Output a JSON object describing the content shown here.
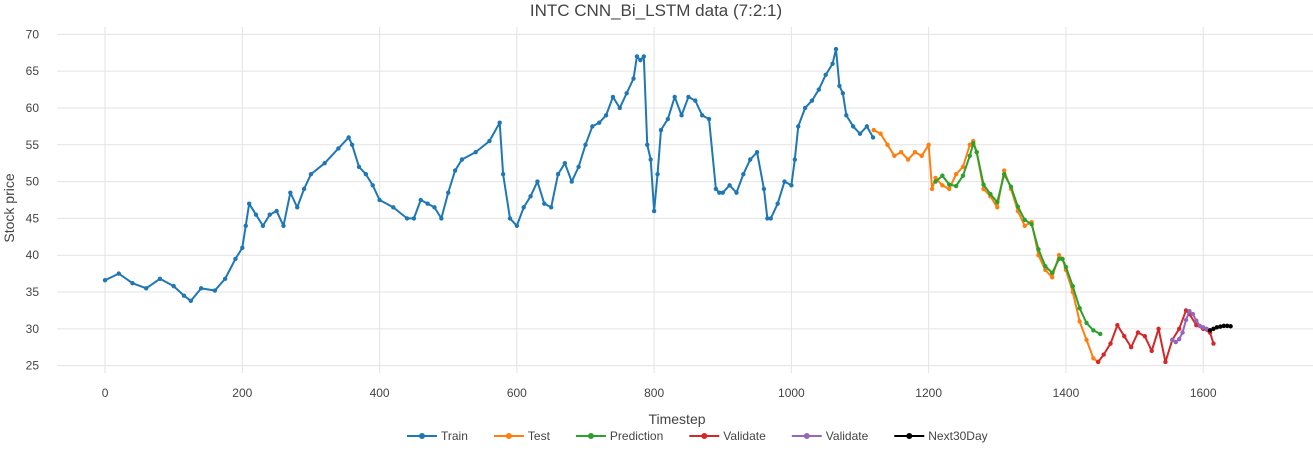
{
  "chart_data": {
    "type": "line",
    "title": "INTC CNN_Bi_LSTM data (7:2:1)",
    "xlabel": "Timestep",
    "ylabel": "Stock price",
    "xlim": [
      -70,
      1760
    ],
    "ylim": [
      24,
      71
    ],
    "xticks": [
      0,
      200,
      400,
      600,
      800,
      1000,
      1200,
      1400,
      1600
    ],
    "yticks": [
      25,
      30,
      35,
      40,
      45,
      50,
      55,
      60,
      65,
      70
    ],
    "grid": true,
    "legend_position": "bottom-center",
    "series": [
      {
        "name": "Train",
        "color": "#1f77b4",
        "x": [
          0,
          20,
          40,
          60,
          80,
          100,
          115,
          125,
          140,
          160,
          175,
          190,
          200,
          205,
          210,
          220,
          230,
          240,
          250,
          260,
          270,
          280,
          290,
          300,
          320,
          340,
          355,
          360,
          370,
          380,
          390,
          400,
          420,
          440,
          450,
          460,
          470,
          480,
          490,
          500,
          510,
          520,
          540,
          560,
          575,
          580,
          590,
          600,
          610,
          620,
          630,
          640,
          650,
          660,
          670,
          680,
          690,
          700,
          710,
          720,
          730,
          740,
          750,
          760,
          770,
          775,
          780,
          785,
          790,
          795,
          800,
          805,
          810,
          820,
          830,
          840,
          850,
          860,
          870,
          880,
          890,
          895,
          900,
          910,
          920,
          930,
          940,
          950,
          960,
          965,
          970,
          980,
          990,
          1000,
          1005,
          1010,
          1020,
          1030,
          1040,
          1050,
          1060,
          1065,
          1070,
          1075,
          1080,
          1090,
          1100,
          1110,
          1119
        ],
        "y": [
          36.6,
          37.5,
          36.2,
          35.5,
          36.8,
          35.8,
          34.5,
          33.8,
          35.5,
          35.2,
          36.8,
          39.5,
          41.0,
          44.0,
          47.0,
          45.5,
          44.0,
          45.5,
          46.0,
          44.0,
          48.5,
          46.5,
          49.0,
          51.0,
          52.5,
          54.5,
          56.0,
          55.0,
          52.0,
          51.0,
          49.5,
          47.5,
          46.5,
          45.0,
          45.0,
          47.5,
          47.0,
          46.5,
          45.0,
          48.5,
          51.5,
          53.0,
          54.0,
          55.5,
          58.0,
          51.0,
          45.0,
          44.0,
          46.5,
          48.0,
          50.0,
          47.0,
          46.5,
          51.0,
          52.5,
          50.0,
          52.0,
          55.0,
          57.5,
          58.0,
          59.0,
          61.5,
          60.0,
          62.0,
          64.0,
          67.0,
          66.5,
          67.0,
          55.0,
          53.0,
          46.0,
          51.0,
          57.0,
          58.5,
          61.5,
          59.0,
          61.5,
          61.0,
          59.0,
          58.5,
          49.0,
          48.5,
          48.5,
          49.5,
          48.5,
          51.0,
          53.0,
          54.0,
          49.0,
          45.0,
          45.0,
          47.0,
          50.0,
          49.5,
          53.0,
          57.5,
          60.0,
          61.0,
          62.5,
          64.5,
          66.0,
          68.0,
          63.0,
          62.0,
          59.0,
          57.5,
          56.5,
          57.5,
          56.0
        ]
      },
      {
        "name": "Test",
        "color": "#ff7f0e",
        "x": [
          1120,
          1130,
          1140,
          1150,
          1160,
          1170,
          1180,
          1190,
          1200,
          1205,
          1210,
          1220,
          1230,
          1240,
          1250,
          1260,
          1265,
          1270,
          1280,
          1290,
          1300,
          1310,
          1320,
          1330,
          1340,
          1350,
          1360,
          1370,
          1380,
          1390,
          1395,
          1400,
          1410,
          1420,
          1430,
          1440,
          1447
        ],
        "y": [
          57.0,
          56.5,
          55.0,
          53.5,
          54.0,
          53.0,
          54.0,
          53.5,
          55.0,
          49.0,
          50.5,
          49.5,
          49.0,
          51.0,
          52.0,
          55.0,
          55.5,
          54.0,
          49.0,
          48.0,
          46.5,
          51.5,
          49.0,
          46.0,
          44.0,
          44.5,
          40.0,
          38.0,
          37.0,
          40.0,
          39.5,
          38.0,
          35.0,
          31.0,
          28.5,
          26.0,
          25.5
        ]
      },
      {
        "name": "Prediction",
        "color": "#2ca02c",
        "x": [
          1210,
          1220,
          1230,
          1240,
          1250,
          1260,
          1265,
          1270,
          1280,
          1290,
          1300,
          1310,
          1320,
          1330,
          1340,
          1350,
          1360,
          1370,
          1380,
          1390,
          1395,
          1400,
          1410,
          1420,
          1430,
          1440,
          1450
        ],
        "y": [
          50.0,
          50.8,
          49.6,
          49.4,
          50.8,
          53.5,
          55.2,
          54.0,
          49.6,
          48.3,
          47.2,
          51.0,
          49.3,
          46.6,
          44.8,
          44.2,
          40.8,
          38.5,
          37.6,
          39.5,
          39.5,
          38.4,
          35.8,
          32.8,
          30.8,
          29.8,
          29.3
        ]
      },
      {
        "name": "Validate",
        "color": "#d62728",
        "x": [
          1447,
          1455,
          1465,
          1475,
          1485,
          1495,
          1505,
          1515,
          1525,
          1535,
          1545,
          1555,
          1565,
          1575,
          1580,
          1590,
          1600,
          1610,
          1615
        ],
        "y": [
          25.5,
          26.5,
          28.0,
          30.5,
          29.0,
          27.5,
          29.5,
          29.0,
          27.0,
          30.0,
          25.5,
          28.5,
          30.0,
          32.5,
          32.0,
          30.5,
          30.0,
          29.5,
          28.0
        ]
      },
      {
        "name": "Validate",
        "color": "#9467bd",
        "x": [
          1555,
          1560,
          1565,
          1570,
          1575,
          1580,
          1585,
          1590,
          1595,
          1600,
          1605,
          1610
        ],
        "y": [
          28.5,
          28.2,
          28.6,
          29.5,
          31.2,
          32.4,
          32.0,
          31.1,
          30.4,
          30.2,
          30.0,
          29.8
        ]
      },
      {
        "name": "Next30Day",
        "color": "#000000",
        "x": [
          1610,
          1615,
          1620,
          1625,
          1630,
          1635,
          1640
        ],
        "y": [
          29.8,
          30.0,
          30.2,
          30.3,
          30.4,
          30.4,
          30.35
        ]
      }
    ]
  }
}
